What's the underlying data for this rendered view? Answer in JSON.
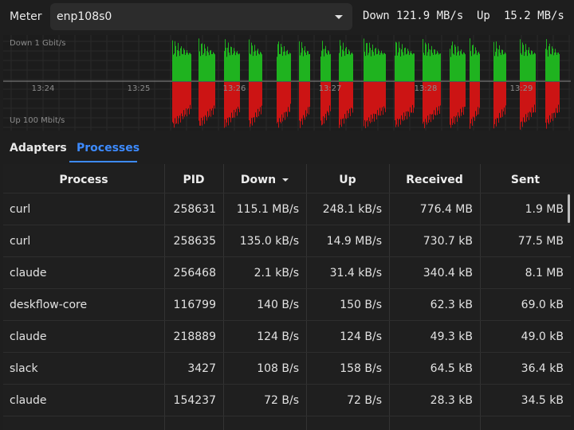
{
  "topbar": {
    "meter_label": "Meter",
    "interface": "enp108s0",
    "down_label": "Down",
    "down_value": "121.9 MB/s",
    "up_label": "Up",
    "up_value": "15.2 MB/s"
  },
  "graph": {
    "top_label": "Down 1 Gbit/s",
    "bottom_label": "Up 100 Mbit/s",
    "ticks": [
      "13:24",
      "13:25",
      "13:26",
      "13:27",
      "13:28",
      "13:29"
    ],
    "colors": {
      "down": "#1fb31f",
      "up": "#cc1414"
    }
  },
  "tabs": {
    "adapters": "Adapters",
    "processes": "Processes",
    "active": "Processes"
  },
  "table": {
    "headers": [
      "Process",
      "PID",
      "Down",
      "Up",
      "Received",
      "Sent"
    ],
    "sorted_by": "Down",
    "rows": [
      [
        "curl",
        "258631",
        "115.1 MB/s",
        "248.1 kB/s",
        "776.4 MB",
        "1.9 MB"
      ],
      [
        "curl",
        "258635",
        "135.0 kB/s",
        "14.9 MB/s",
        "730.7 kB",
        "77.5 MB"
      ],
      [
        "claude",
        "256468",
        "2.1 kB/s",
        "31.4 kB/s",
        "340.4 kB",
        "8.1 MB"
      ],
      [
        "deskflow-core",
        "116799",
        "140 B/s",
        "150 B/s",
        "62.3 kB",
        "69.0 kB"
      ],
      [
        "claude",
        "218889",
        "124 B/s",
        "124 B/s",
        "49.3 kB",
        "49.0 kB"
      ],
      [
        "slack",
        "3427",
        "108 B/s",
        "158 B/s",
        "64.5 kB",
        "36.4 kB"
      ],
      [
        "claude",
        "154237",
        "72 B/s",
        "72 B/s",
        "28.3 kB",
        "34.5 kB"
      ]
    ]
  }
}
